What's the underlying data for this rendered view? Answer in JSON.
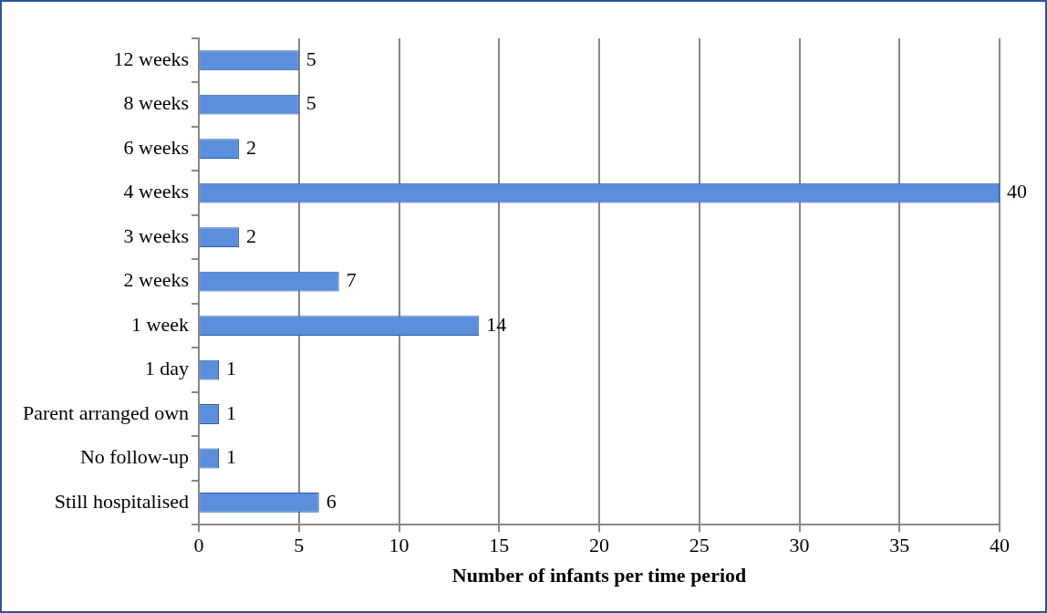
{
  "chart_data": {
    "type": "bar",
    "orientation": "horizontal",
    "xlabel": "Number of infants per time period",
    "categories": [
      "12 weeks",
      "8 weeks",
      "6 weeks",
      "4 weeks",
      "3 weeks",
      "2 weeks",
      "1 week",
      "1 day",
      "Parent arranged own",
      "No follow-up",
      "Still hospitalised"
    ],
    "values": [
      5,
      5,
      2,
      40,
      2,
      7,
      14,
      1,
      1,
      1,
      6
    ],
    "color": "#5b8fdc",
    "xlim": [
      0,
      40
    ],
    "xticks": [
      0,
      5,
      10,
      15,
      20,
      25,
      30,
      35,
      40
    ],
    "grid": "x",
    "legend": false,
    "data_labels": true
  }
}
